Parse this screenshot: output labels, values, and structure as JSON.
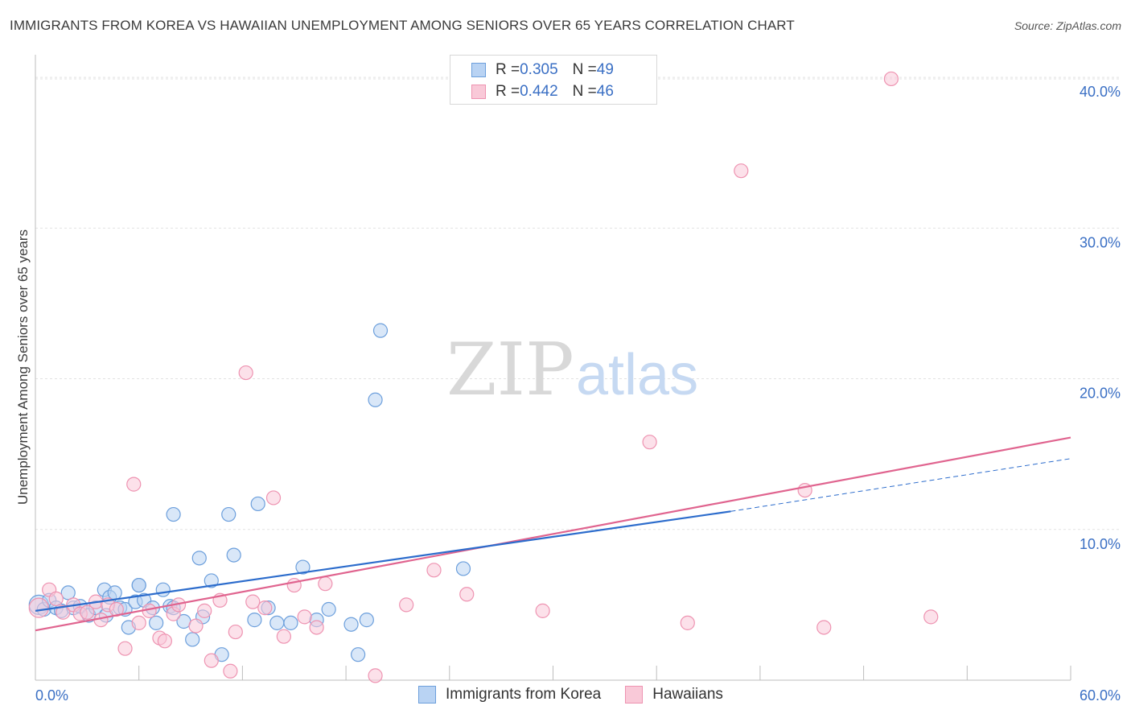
{
  "title": "IMMIGRANTS FROM KOREA VS HAWAIIAN UNEMPLOYMENT AMONG SENIORS OVER 65 YEARS CORRELATION CHART",
  "source": "Source: ZipAtlas.com",
  "watermark": {
    "zip": "ZIP",
    "atlas": "atlas"
  },
  "legend": {
    "rows": [
      {
        "r_label": "R = ",
        "r_value": "0.305",
        "n_label": "N = ",
        "n_value": "49"
      },
      {
        "r_label": "R = ",
        "r_value": "0.442",
        "n_label": "N = ",
        "n_value": "46"
      }
    ]
  },
  "colors": {
    "korea_fill": "#b9d3f3",
    "korea_stroke": "#6c9fdc",
    "korea_line": "#2c6ccc",
    "hawaii_fill": "#f9c9d8",
    "hawaii_stroke": "#ee93b1",
    "hawaii_line": "#e0648f",
    "tick_label": "#3a6fc4",
    "grid": "#e2e2e2"
  },
  "chart_data": {
    "type": "scatter",
    "title": "IMMIGRANTS FROM KOREA VS HAWAIIAN UNEMPLOYMENT AMONG SENIORS OVER 65 YEARS CORRELATION CHART",
    "xlabel": "",
    "ylabel": "Unemployment Among Seniors over 65 years",
    "xlim": [
      0,
      60
    ],
    "ylim": [
      0,
      41.5
    ],
    "x_tick_labels": [
      "0.0%",
      "60.0%"
    ],
    "y_ticks": [
      10,
      20,
      30,
      40
    ],
    "y_tick_labels": [
      "10.0%",
      "20.0%",
      "30.0%",
      "40.0%"
    ],
    "grid": true,
    "legend_position": "top-center",
    "series": [
      {
        "name": "Immigrants from Korea",
        "r": 0.305,
        "n": 49,
        "trend": {
          "x0": 0,
          "y0": 4.6,
          "x1": 40.3,
          "y1": 11.2,
          "dash_to_x": 60,
          "dash_to_y": 14.7
        },
        "points": [
          [
            0.2,
            5.0
          ],
          [
            0.5,
            4.7
          ],
          [
            0.8,
            5.3
          ],
          [
            1.2,
            4.8
          ],
          [
            1.5,
            4.6
          ],
          [
            1.9,
            5.8
          ],
          [
            2.2,
            4.8
          ],
          [
            2.6,
            4.9
          ],
          [
            3.1,
            4.3
          ],
          [
            3.5,
            4.8
          ],
          [
            4.0,
            6.0
          ],
          [
            4.3,
            5.5
          ],
          [
            4.6,
            5.8
          ],
          [
            4.9,
            4.8
          ],
          [
            5.2,
            4.7
          ],
          [
            5.4,
            3.5
          ],
          [
            5.8,
            5.2
          ],
          [
            6.0,
            6.3
          ],
          [
            6.3,
            5.3
          ],
          [
            6.8,
            4.8
          ],
          [
            7.0,
            3.8
          ],
          [
            7.4,
            6.0
          ],
          [
            7.8,
            4.9
          ],
          [
            8.0,
            4.8
          ],
          [
            8.6,
            3.9
          ],
          [
            9.1,
            2.7
          ],
          [
            9.5,
            8.1
          ],
          [
            9.7,
            4.2
          ],
          [
            10.2,
            6.6
          ],
          [
            10.8,
            1.7
          ],
          [
            11.2,
            11.0
          ],
          [
            11.5,
            8.3
          ],
          [
            12.7,
            4.0
          ],
          [
            12.9,
            11.7
          ],
          [
            13.5,
            4.8
          ],
          [
            14.0,
            3.8
          ],
          [
            14.8,
            3.8
          ],
          [
            15.5,
            7.5
          ],
          [
            16.3,
            4.0
          ],
          [
            17.0,
            4.7
          ],
          [
            18.3,
            3.7
          ],
          [
            18.7,
            1.7
          ],
          [
            19.2,
            4.0
          ],
          [
            19.7,
            18.6
          ],
          [
            20.0,
            23.2
          ],
          [
            24.8,
            7.4
          ],
          [
            8.0,
            11.0
          ],
          [
            6.0,
            6.3
          ],
          [
            4.1,
            4.3
          ]
        ]
      },
      {
        "name": "Hawaiians",
        "r": 0.442,
        "n": 46,
        "trend": {
          "x0": 0,
          "y0": 3.3,
          "x1": 60,
          "y1": 16.1
        },
        "points": [
          [
            0.2,
            4.8
          ],
          [
            0.8,
            6.0
          ],
          [
            1.2,
            5.4
          ],
          [
            1.6,
            4.5
          ],
          [
            2.2,
            5.0
          ],
          [
            2.6,
            4.4
          ],
          [
            3.0,
            4.5
          ],
          [
            3.5,
            5.2
          ],
          [
            3.8,
            4.0
          ],
          [
            4.2,
            5.0
          ],
          [
            4.7,
            4.7
          ],
          [
            5.2,
            2.1
          ],
          [
            5.7,
            13.0
          ],
          [
            6.0,
            3.8
          ],
          [
            6.6,
            4.6
          ],
          [
            7.2,
            2.8
          ],
          [
            7.5,
            2.6
          ],
          [
            8.0,
            4.4
          ],
          [
            8.3,
            5.0
          ],
          [
            9.3,
            3.6
          ],
          [
            9.8,
            4.6
          ],
          [
            10.2,
            1.3
          ],
          [
            10.7,
            5.3
          ],
          [
            11.3,
            0.6
          ],
          [
            11.6,
            3.2
          ],
          [
            12.2,
            20.4
          ],
          [
            12.6,
            5.2
          ],
          [
            13.3,
            4.8
          ],
          [
            13.8,
            12.1
          ],
          [
            14.4,
            2.9
          ],
          [
            15.0,
            6.3
          ],
          [
            15.6,
            4.2
          ],
          [
            16.3,
            3.5
          ],
          [
            16.8,
            6.4
          ],
          [
            19.7,
            0.3
          ],
          [
            21.5,
            5.0
          ],
          [
            23.1,
            7.3
          ],
          [
            25.0,
            5.7
          ],
          [
            29.4,
            4.6
          ],
          [
            35.6,
            15.8
          ],
          [
            37.8,
            3.8
          ],
          [
            40.9,
            33.8
          ],
          [
            44.6,
            12.6
          ],
          [
            45.7,
            3.5
          ],
          [
            49.6,
            39.9
          ],
          [
            51.9,
            4.2
          ]
        ]
      }
    ]
  }
}
